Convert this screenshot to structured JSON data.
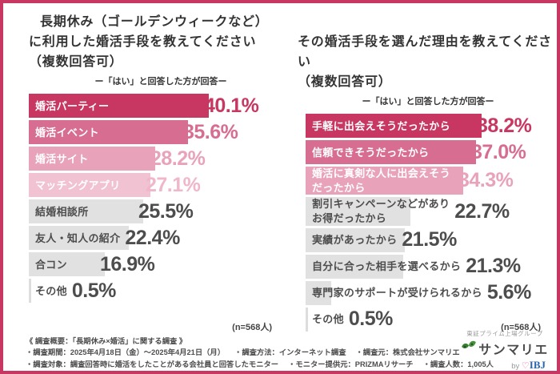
{
  "page": {
    "border_color": "#C73762",
    "background": "#FFFFFF"
  },
  "charts": [
    {
      "title": "長期休み（ゴールデンウィークなど）\nに利用した婚活手段を教えてください\n（複数回答可）",
      "note": "ー「はい」と回答した方が回答ー",
      "sample": "(n=568人)",
      "bars": [
        {
          "label": "婚活パーティー",
          "value": 40.1,
          "display": "40.1%",
          "bar_color": "#C73762",
          "label_color": "#FFFFFF",
          "value_color": "#C73762"
        },
        {
          "label": "婚活イベント",
          "value": 35.6,
          "display": "35.6%",
          "bar_color": "#D76E91",
          "label_color": "#FFFFFF",
          "value_color": "#D76E91"
        },
        {
          "label": "婚活サイト",
          "value": 28.2,
          "display": "28.2%",
          "bar_color": "#E8A3BB",
          "label_color": "#FFFFFF",
          "value_color": "#E8A3BB"
        },
        {
          "label": "マッチングアプリ",
          "value": 27.1,
          "display": "27.1%",
          "bar_color": "#F1C3D2",
          "label_color": "#FFFFFF",
          "value_color": "#F0B6CA"
        },
        {
          "label": "結婚相談所",
          "value": 25.5,
          "display": "25.5%",
          "bar_color": "#E1E1E1",
          "label_color": "#4D4D4D",
          "value_color": "#4D4D4D"
        },
        {
          "label": "友人・知人の紹介",
          "value": 22.4,
          "display": "22.4%",
          "bar_color": "#E1E1E1",
          "label_color": "#4D4D4D",
          "value_color": "#4D4D4D"
        },
        {
          "label": "合コン",
          "value": 16.9,
          "display": "16.9%",
          "bar_color": "#E1E1E1",
          "label_color": "#4D4D4D",
          "value_color": "#4D4D4D"
        },
        {
          "label": "その他",
          "value": 0.5,
          "display": "0.5%",
          "bar_color": "#DDDDDD",
          "label_color": "#4D4D4D",
          "value_color": "#4D4D4D"
        }
      ]
    },
    {
      "title": "その婚活手段を選んだ理由を教えてください\n（複数回答可）",
      "note": "ー「はい」と回答した方が回答ー",
      "sample": "(n=568人)",
      "bars": [
        {
          "label": "手軽に出会えそうだったから",
          "value": 38.2,
          "display": "38.2%",
          "bar_color": "#C73762",
          "label_color": "#FFFFFF",
          "value_color": "#C73762"
        },
        {
          "label": "信頼できそうだったから",
          "value": 37.0,
          "display": "37.0%",
          "bar_color": "#D76E91",
          "label_color": "#FFFFFF",
          "value_color": "#D76E91"
        },
        {
          "label": "婚活に真剣な人に出会えそう\nだったから",
          "value": 34.3,
          "display": "34.3%",
          "bar_color": "#E8A3BB",
          "label_color": "#FFFFFF",
          "value_color": "#E8A3BB"
        },
        {
          "label": "割引キャンペーンなどがあり\nお得だったから",
          "value": 22.7,
          "display": "22.7%",
          "bar_color": "#E1E1E1",
          "label_color": "#4D4D4D",
          "value_color": "#4D4D4D"
        },
        {
          "label": "実績があったから",
          "value": 21.5,
          "display": "21.5%",
          "bar_color": "#E1E1E1",
          "label_color": "#4D4D4D",
          "value_color": "#4D4D4D"
        },
        {
          "label": "自分に合った相手を選べるから",
          "value": 21.3,
          "display": "21.3%",
          "bar_color": "#E1E1E1",
          "label_color": "#4D4D4D",
          "value_color": "#4D4D4D"
        },
        {
          "label": "専門家のサポートが受けられるから",
          "value": 5.6,
          "display": "5.6%",
          "bar_color": "#E1E1E1",
          "label_color": "#4D4D4D",
          "value_color": "#4D4D4D"
        },
        {
          "label": "その他",
          "value": 0.5,
          "display": "0.5%",
          "bar_color": "#DDDDDD",
          "label_color": "#4D4D4D",
          "value_color": "#4D4D4D"
        }
      ]
    }
  ],
  "chart_data": [
    {
      "type": "bar",
      "orientation": "horizontal",
      "title": "長期休み（ゴールデンウィークなど）に利用した婚活手段を教えてください（複数回答可）",
      "subtitle": "ー「はい」と回答した方が回答ー",
      "categories": [
        "婚活パーティー",
        "婚活イベント",
        "婚活サイト",
        "マッチングアプリ",
        "結婚相談所",
        "友人・知人の紹介",
        "合コン",
        "その他"
      ],
      "values": [
        40.1,
        35.6,
        28.2,
        27.1,
        25.5,
        22.4,
        16.9,
        0.5
      ],
      "unit": "%",
      "xlim": [
        0,
        45
      ],
      "grid": false,
      "legend": false,
      "sample_size": "(n=568人)"
    },
    {
      "type": "bar",
      "orientation": "horizontal",
      "title": "その婚活手段を選んだ理由を教えてください（複数回答可）",
      "subtitle": "ー「はい」と回答した方が回答ー",
      "categories": [
        "手軽に出会えそうだったから",
        "信頼できそうだったから",
        "婚活に真剣な人に出会えそうだったから",
        "割引キャンペーンなどがありお得だったから",
        "実績があったから",
        "自分に合った相手を選べるから",
        "専門家のサポートが受けられるから",
        "その他"
      ],
      "values": [
        38.2,
        37.0,
        34.3,
        22.7,
        21.5,
        21.3,
        5.6,
        0.5
      ],
      "unit": "%",
      "xlim": [
        0,
        45
      ],
      "grid": false,
      "legend": false,
      "sample_size": "(n=568人)"
    }
  ],
  "footer": {
    "heading": "《 調査概要：「長期休み×婚活」に関する調査 》",
    "rows": [
      [
        "・調査期間：2025年4月18日（金）～2025年4月21日（月）",
        "・調査方法：インターネット調査",
        "・調査元：株式会社サンマリエ"
      ],
      [
        "・調査対象：調査回答時に婚活をしたことがある会社員と回答したモニター",
        "・モニター提供元：PRIZMAリサーチ",
        "・調査人数：1,005人"
      ]
    ]
  },
  "logo": {
    "group_label": "東証プライム上場グループ",
    "name": "サンマリエ",
    "by": "by",
    "heart": "♡",
    "ibj": "IBJ"
  }
}
